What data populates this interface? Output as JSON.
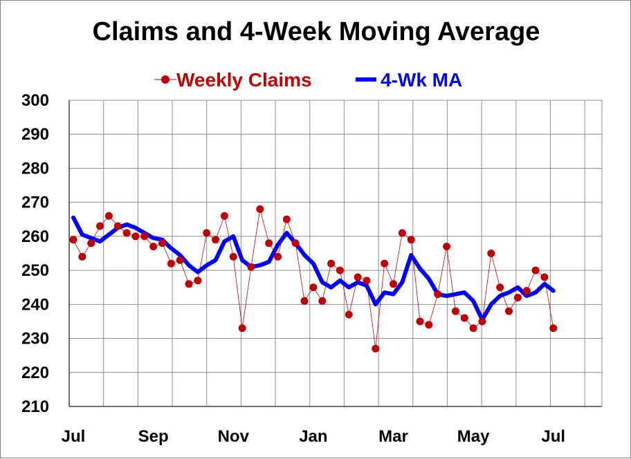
{
  "chart_data": {
    "type": "line",
    "title": "Claims and 4-Week Moving Average",
    "xlabel": "",
    "ylabel": "",
    "ylim": [
      210,
      300
    ],
    "y_ticks": [
      210,
      220,
      230,
      240,
      250,
      260,
      270,
      280,
      290,
      300
    ],
    "x_tick_labels": [
      "Jul",
      "Sep",
      "Nov",
      "Jan",
      "Mar",
      "May",
      "Jul"
    ],
    "x_tick_week_index": [
      0,
      9,
      18,
      27,
      36,
      45,
      54
    ],
    "grid": true,
    "legend_position": "top-center",
    "series": [
      {
        "name": "Weekly Claims",
        "style": "markers-with-thin-line",
        "color": "#c00000",
        "values": [
          259,
          254,
          258,
          263,
          266,
          263,
          261,
          260,
          260,
          257,
          258,
          252,
          253,
          246,
          247,
          261,
          259,
          266,
          254,
          233,
          251,
          268,
          258,
          254,
          265,
          258,
          241,
          245,
          241,
          252,
          250,
          237,
          248,
          247,
          227,
          252,
          246,
          261,
          259,
          235,
          234,
          243,
          257,
          238,
          236,
          233,
          235,
          255,
          245,
          238,
          242,
          244,
          250,
          248,
          233
        ]
      },
      {
        "name": "4-Wk MA",
        "style": "thick-line",
        "color": "#0000ff",
        "values": [
          265.5,
          260.5,
          259.5,
          258.5,
          260.5,
          262.5,
          263.5,
          262.5,
          261,
          259.5,
          259,
          256.5,
          254.5,
          251.5,
          249.5,
          251.5,
          253,
          258.5,
          260,
          253,
          251,
          251.5,
          252.5,
          257.5,
          261,
          258,
          254.5,
          252,
          246.5,
          245,
          247,
          245,
          246.5,
          245.5,
          240,
          243.5,
          243,
          246.5,
          254.5,
          250.5,
          247.5,
          243,
          242.5,
          243,
          243.5,
          241,
          235.5,
          240,
          242.5,
          243.5,
          245,
          242.5,
          243.5,
          246,
          244
        ]
      }
    ]
  },
  "legend": {
    "weekly_label": "Weekly Claims",
    "ma_label": "4-Wk MA"
  },
  "colors": {
    "weekly": "#c00000",
    "ma": "#0000ff",
    "grid": "#8c8c8c"
  }
}
